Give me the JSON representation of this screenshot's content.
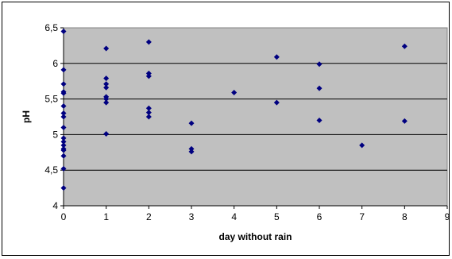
{
  "chart_data": {
    "type": "scatter",
    "title": "",
    "xlabel": "day without rain",
    "ylabel": "pH",
    "xlim": [
      0,
      9
    ],
    "ylim": [
      4,
      6.5
    ],
    "x_ticks": [
      0,
      1,
      2,
      3,
      4,
      5,
      6,
      7,
      8,
      9
    ],
    "y_ticks": [
      "4",
      "4,5",
      "5",
      "5,5",
      "6",
      "6,5"
    ],
    "y_tick_values": [
      4,
      4.5,
      5,
      5.5,
      6,
      6.5
    ],
    "grid": "horizontal",
    "legend": "none",
    "plot_background": "#c0c0c0",
    "marker_color": "#000080",
    "points": [
      {
        "x": 0,
        "y": 6.45
      },
      {
        "x": 0,
        "y": 5.91
      },
      {
        "x": 0,
        "y": 5.71
      },
      {
        "x": 0,
        "y": 5.6
      },
      {
        "x": 0,
        "y": 5.58
      },
      {
        "x": 0,
        "y": 5.4
      },
      {
        "x": 0,
        "y": 5.3
      },
      {
        "x": 0,
        "y": 5.25
      },
      {
        "x": 0,
        "y": 5.1
      },
      {
        "x": 0,
        "y": 4.95
      },
      {
        "x": 0,
        "y": 4.9
      },
      {
        "x": 0,
        "y": 4.85
      },
      {
        "x": 0,
        "y": 4.8
      },
      {
        "x": 0,
        "y": 4.78
      },
      {
        "x": 0,
        "y": 4.7
      },
      {
        "x": 0,
        "y": 4.52
      },
      {
        "x": 0,
        "y": 4.25
      },
      {
        "x": 1,
        "y": 6.21
      },
      {
        "x": 1,
        "y": 5.79
      },
      {
        "x": 1,
        "y": 5.71
      },
      {
        "x": 1,
        "y": 5.66
      },
      {
        "x": 1,
        "y": 5.53
      },
      {
        "x": 1,
        "y": 5.5
      },
      {
        "x": 1,
        "y": 5.45
      },
      {
        "x": 1,
        "y": 5.01
      },
      {
        "x": 2,
        "y": 6.3
      },
      {
        "x": 2,
        "y": 5.86
      },
      {
        "x": 2,
        "y": 5.82
      },
      {
        "x": 2,
        "y": 5.37
      },
      {
        "x": 2,
        "y": 5.31
      },
      {
        "x": 2,
        "y": 5.25
      },
      {
        "x": 3,
        "y": 5.16
      },
      {
        "x": 3,
        "y": 4.8
      },
      {
        "x": 3,
        "y": 4.76
      },
      {
        "x": 4,
        "y": 5.59
      },
      {
        "x": 5,
        "y": 6.09
      },
      {
        "x": 5,
        "y": 5.45
      },
      {
        "x": 6,
        "y": 5.99
      },
      {
        "x": 6,
        "y": 5.65
      },
      {
        "x": 6,
        "y": 5.2
      },
      {
        "x": 7,
        "y": 4.85
      },
      {
        "x": 8,
        "y": 6.24
      },
      {
        "x": 8,
        "y": 5.19
      }
    ]
  }
}
